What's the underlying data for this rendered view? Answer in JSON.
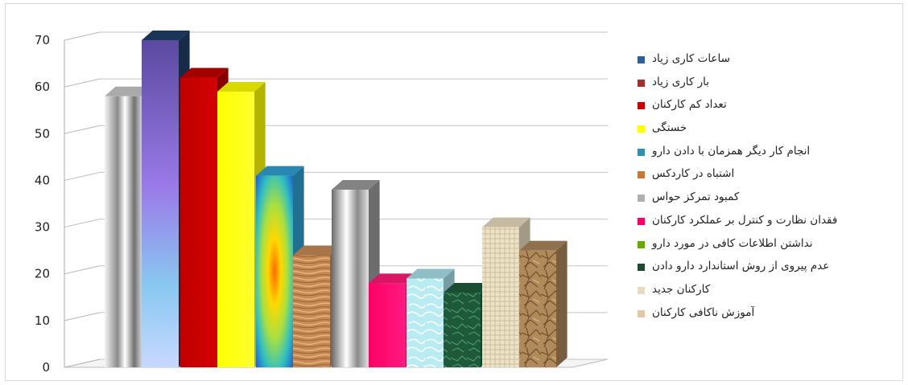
{
  "chart_data": {
    "type": "bar",
    "style": "3d-column",
    "ylim": [
      0,
      70
    ],
    "yticks": [
      0,
      10,
      20,
      30,
      40,
      50,
      60,
      70
    ],
    "grid": true,
    "legend_position": "right",
    "series": [
      {
        "name": "ساعات کاری زیاد",
        "value": 58,
        "color": "#c8c8c8"
      },
      {
        "name": "بار کاری زیاد",
        "value": 70,
        "color": "#1f3e64"
      },
      {
        "name": "تعداد کم کارکنان",
        "value": 62,
        "color": "#c00000"
      },
      {
        "name": "خستگی",
        "value": 59,
        "color": "#ffff00"
      },
      {
        "name": "انجام کار دیگر همزمان با دادن دارو",
        "value": 41,
        "color": "#2fa0d0"
      },
      {
        "name": "اشتباه در کاردکس",
        "value": 24,
        "color": "#c68a55"
      },
      {
        "name": "کمبود تمرکز حواس",
        "value": 38,
        "color": "#9a9a9a"
      },
      {
        "name": "فقدان نظارت و کنترل بر عملکرد کارکنان",
        "value": 18,
        "color": "#ff1a75"
      },
      {
        "name": "نداشتن اطلاعات کافی در مورد دارو",
        "value": 19,
        "color": "#a8e0ea"
      },
      {
        "name": "عدم پیروی از روش استاندارد دارو دادن",
        "value": 16,
        "color": "#1e5a3a"
      },
      {
        "name": "کارکنان جدید",
        "value": 30,
        "color": "#e8dcc0"
      },
      {
        "name": "آموزش ناکافی کارکنان",
        "value": 25,
        "color": "#a8865a"
      }
    ]
  },
  "legend": {
    "items": [
      {
        "label": "ساعات کاری زیاد",
        "color": "#2f5f9a"
      },
      {
        "label": "بار کاری زیاد",
        "color": "#a03030"
      },
      {
        "label": "تعداد کم کارکنان",
        "color": "#cc0000"
      },
      {
        "label": "خستگی",
        "color": "#ffff00"
      },
      {
        "label": "انجام کار دیگر همزمان با دادن دارو",
        "color": "#2f8fb0"
      },
      {
        "label": "اشتباه در کاردکس",
        "color": "#c8773a"
      },
      {
        "label": "کمبود تمرکز حواس",
        "color": "#b0b0b0"
      },
      {
        "label": "فقدان نظارت و کنترل بر عملکرد کارکنان",
        "color": "#ff0066"
      },
      {
        "label": "نداشتن اطلاعات کافی در مورد دارو",
        "color": "#66aa00"
      },
      {
        "label": "عدم پیروی از روش استاندارد دارو دادن",
        "color": "#1f4a30"
      },
      {
        "label": "کارکنان جدید",
        "color": "#e4dcc4"
      },
      {
        "label": "آموزش ناکافی کارکنان",
        "color": "#e0c8a8"
      }
    ]
  }
}
